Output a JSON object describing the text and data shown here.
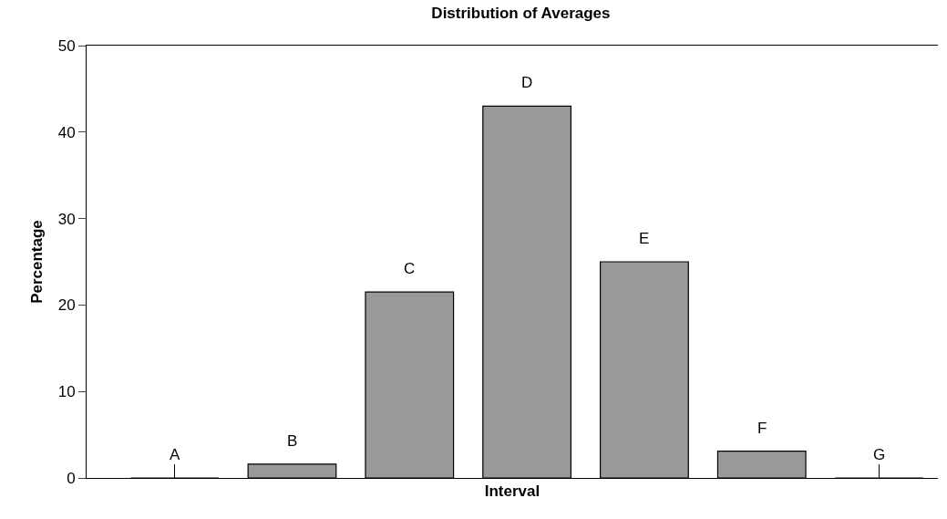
{
  "chart_data": {
    "type": "bar",
    "title": "Distribution of Averages",
    "xlabel": "Interval",
    "ylabel": "Percentage",
    "categories": [
      "A",
      "B",
      "C",
      "D",
      "E",
      "F",
      "G"
    ],
    "values": [
      0,
      1.6,
      21.5,
      43.0,
      25.0,
      3.1,
      0
    ],
    "color": "#999999",
    "ylim": [
      0,
      50
    ],
    "yticks": [
      0,
      10,
      20,
      30,
      40,
      50
    ]
  }
}
